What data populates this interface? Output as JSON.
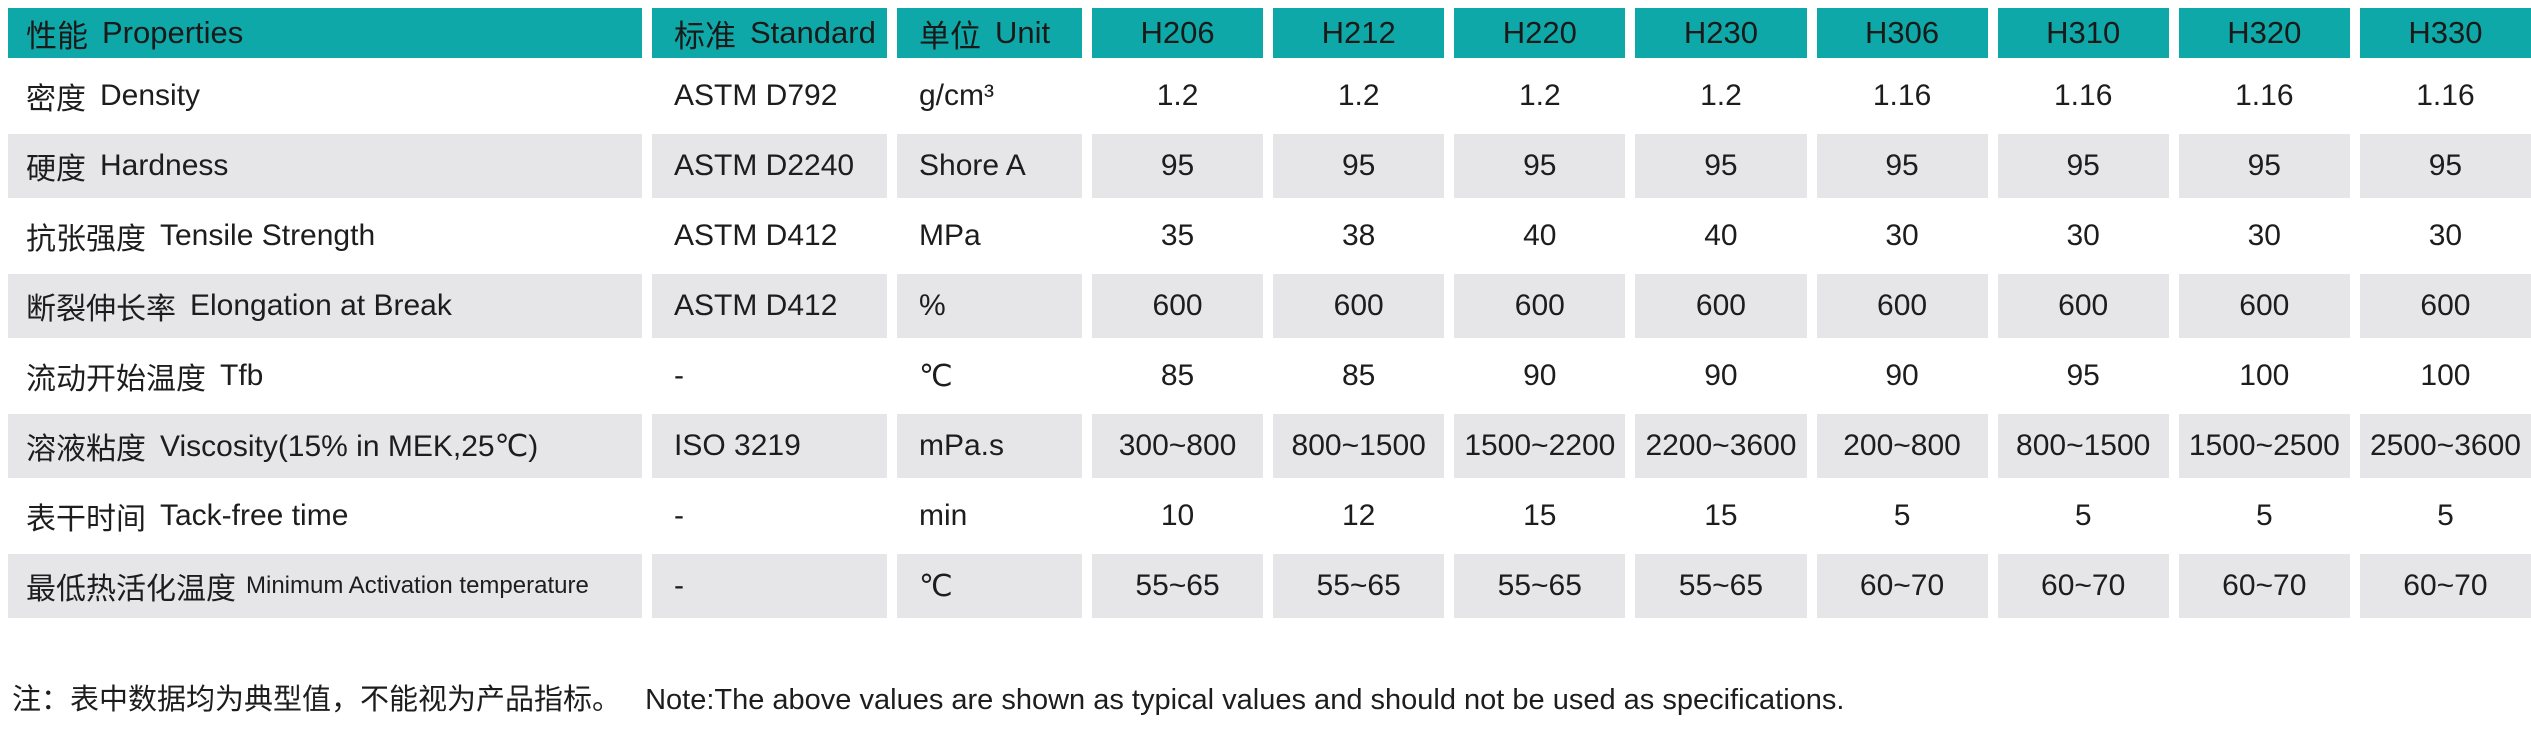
{
  "colors": {
    "header_bg": "#0fa8a8",
    "alt_row_bg": "#e6e6e9",
    "text": "#1d1d1d"
  },
  "table": {
    "header": {
      "property_zh": "性能",
      "property_en": "Properties",
      "standard_zh": "标准",
      "standard_en": "Standard",
      "unit_zh": "单位",
      "unit_en": "Unit",
      "products": [
        "H206",
        "H212",
        "H220",
        "H230",
        "H306",
        "H310",
        "H320",
        "H330"
      ]
    },
    "rows": [
      {
        "zh": "密度",
        "en": "Density",
        "standard": "ASTM D792",
        "unit": "g/cm³",
        "values": [
          "1.2",
          "1.2",
          "1.2",
          "1.2",
          "1.16",
          "1.16",
          "1.16",
          "1.16"
        ]
      },
      {
        "zh": "硬度",
        "en": "Hardness",
        "standard": "ASTM D2240",
        "unit": "Shore A",
        "values": [
          "95",
          "95",
          "95",
          "95",
          "95",
          "95",
          "95",
          "95"
        ]
      },
      {
        "zh": "抗张强度",
        "en": "Tensile Strength",
        "standard": "ASTM D412",
        "unit": "MPa",
        "values": [
          "35",
          "38",
          "40",
          "40",
          "30",
          "30",
          "30",
          "30"
        ]
      },
      {
        "zh": "断裂伸长率",
        "en": "Elongation at Break",
        "standard": "ASTM D412",
        "unit": "%",
        "values": [
          "600",
          "600",
          "600",
          "600",
          "600",
          "600",
          "600",
          "600"
        ]
      },
      {
        "zh": "流动开始温度",
        "en": "Tfb",
        "standard": "-",
        "unit": "℃",
        "values": [
          "85",
          "85",
          "90",
          "90",
          "90",
          "95",
          "100",
          "100"
        ]
      },
      {
        "zh": "溶液粘度",
        "en": "Viscosity(15% in MEK,25℃)",
        "standard": "ISO 3219",
        "unit": "mPa.s",
        "values": [
          "300~800",
          "800~1500",
          "1500~2200",
          "2200~3600",
          "200~800",
          "800~1500",
          "1500~2500",
          "2500~3600"
        ]
      },
      {
        "zh": "表干时间",
        "en": "Tack-free time",
        "standard": "-",
        "unit": "min",
        "values": [
          "10",
          "12",
          "15",
          "15",
          "5",
          "5",
          "5",
          "5"
        ]
      },
      {
        "zh": "最低热活化温度",
        "en": "Minimum Activation temperature",
        "standard": "-",
        "unit": "℃",
        "values": [
          "55~65",
          "55~65",
          "55~65",
          "55~65",
          "60~70",
          "60~70",
          "60~70",
          "60~70"
        ]
      }
    ]
  },
  "footnote": {
    "zh": "注：表中数据均为典型值，不能视为产品指标。",
    "en": "Note:The above values are shown as typical values and should not be used as specifications."
  }
}
